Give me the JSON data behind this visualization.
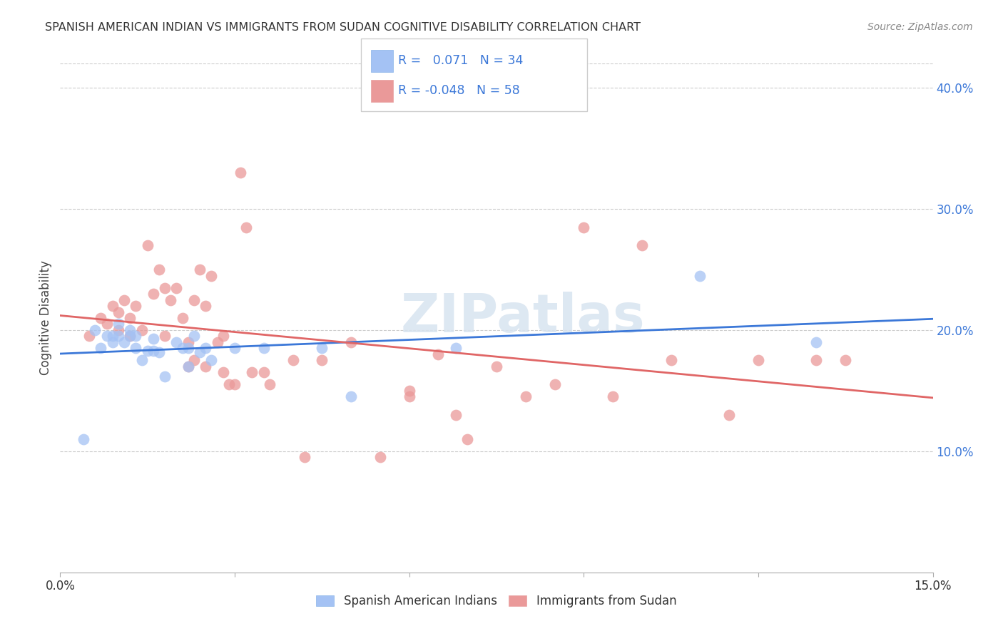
{
  "title": "SPANISH AMERICAN INDIAN VS IMMIGRANTS FROM SUDAN COGNITIVE DISABILITY CORRELATION CHART",
  "source": "Source: ZipAtlas.com",
  "ylabel": "Cognitive Disability",
  "xlim": [
    0.0,
    0.15
  ],
  "ylim": [
    0.0,
    0.42
  ],
  "xticks": [
    0.0,
    0.03,
    0.06,
    0.09,
    0.12,
    0.15
  ],
  "xticklabels": [
    "0.0%",
    "",
    "",
    "",
    "",
    "15.0%"
  ],
  "yticks_right": [
    0.1,
    0.2,
    0.3,
    0.4
  ],
  "ytick_right_labels": [
    "10.0%",
    "20.0%",
    "30.0%",
    "40.0%"
  ],
  "blue_color": "#a4c2f4",
  "pink_color": "#ea9999",
  "blue_line_color": "#3c78d8",
  "pink_line_color": "#e06666",
  "legend_R_blue": "0.071",
  "legend_N_blue": "34",
  "legend_R_pink": "-0.048",
  "legend_N_pink": "58",
  "watermark": "ZIPatlas",
  "blue_x": [
    0.004,
    0.006,
    0.007,
    0.008,
    0.009,
    0.009,
    0.01,
    0.01,
    0.011,
    0.012,
    0.012,
    0.013,
    0.013,
    0.014,
    0.015,
    0.016,
    0.016,
    0.017,
    0.018,
    0.02,
    0.021,
    0.022,
    0.022,
    0.023,
    0.024,
    0.025,
    0.026,
    0.03,
    0.035,
    0.045,
    0.05,
    0.068,
    0.11,
    0.13
  ],
  "blue_y": [
    0.11,
    0.2,
    0.185,
    0.195,
    0.195,
    0.19,
    0.205,
    0.195,
    0.19,
    0.195,
    0.2,
    0.195,
    0.185,
    0.175,
    0.183,
    0.193,
    0.183,
    0.182,
    0.162,
    0.19,
    0.185,
    0.17,
    0.185,
    0.195,
    0.182,
    0.185,
    0.175,
    0.185,
    0.185,
    0.185,
    0.145,
    0.185,
    0.245,
    0.19
  ],
  "pink_x": [
    0.005,
    0.007,
    0.008,
    0.009,
    0.01,
    0.01,
    0.011,
    0.012,
    0.012,
    0.013,
    0.014,
    0.015,
    0.016,
    0.017,
    0.018,
    0.018,
    0.019,
    0.02,
    0.021,
    0.022,
    0.022,
    0.023,
    0.023,
    0.024,
    0.025,
    0.025,
    0.026,
    0.027,
    0.028,
    0.028,
    0.029,
    0.03,
    0.031,
    0.032,
    0.033,
    0.035,
    0.036,
    0.04,
    0.042,
    0.045,
    0.05,
    0.06,
    0.065,
    0.068,
    0.075,
    0.08,
    0.085,
    0.09,
    0.1,
    0.105,
    0.115,
    0.12,
    0.13,
    0.135,
    0.06,
    0.055,
    0.07,
    0.095
  ],
  "pink_y": [
    0.195,
    0.21,
    0.205,
    0.22,
    0.2,
    0.215,
    0.225,
    0.195,
    0.21,
    0.22,
    0.2,
    0.27,
    0.23,
    0.25,
    0.235,
    0.195,
    0.225,
    0.235,
    0.21,
    0.19,
    0.17,
    0.175,
    0.225,
    0.25,
    0.22,
    0.17,
    0.245,
    0.19,
    0.195,
    0.165,
    0.155,
    0.155,
    0.33,
    0.285,
    0.165,
    0.165,
    0.155,
    0.175,
    0.095,
    0.175,
    0.19,
    0.145,
    0.18,
    0.13,
    0.17,
    0.145,
    0.155,
    0.285,
    0.27,
    0.175,
    0.13,
    0.175,
    0.175,
    0.175,
    0.15,
    0.095,
    0.11,
    0.145
  ]
}
